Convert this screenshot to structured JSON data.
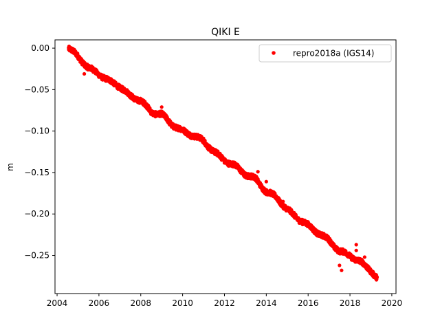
{
  "chart_data": {
    "type": "scatter",
    "title": "QIKI E",
    "xlabel": "",
    "ylabel": "m",
    "xlim": [
      2003.9,
      2020.2
    ],
    "ylim": [
      -0.296,
      0.01
    ],
    "x_ticks": [
      2004,
      2006,
      2008,
      2010,
      2012,
      2014,
      2016,
      2018,
      2020
    ],
    "y_ticks": [
      0.0,
      -0.05,
      -0.1,
      -0.15,
      -0.2,
      -0.25
    ],
    "y_tick_labels": [
      "0.00",
      "−0.05",
      "−0.10",
      "−0.15",
      "−0.20",
      "−0.25"
    ],
    "grid": false,
    "legend_position": "top-right",
    "series": [
      {
        "name": "repro2018a (IGS14)",
        "color": "#ff0000",
        "marker": "circle",
        "trend": [
          [
            2004.55,
            0.0
          ],
          [
            2005.0,
            -0.01
          ],
          [
            2005.5,
            -0.024
          ],
          [
            2006.0,
            -0.031
          ],
          [
            2006.5,
            -0.04
          ],
          [
            2007.0,
            -0.046
          ],
          [
            2007.5,
            -0.058
          ],
          [
            2008.0,
            -0.063
          ],
          [
            2008.5,
            -0.077
          ],
          [
            2009.0,
            -0.08
          ],
          [
            2009.5,
            -0.092
          ],
          [
            2010.0,
            -0.1
          ],
          [
            2010.5,
            -0.105
          ],
          [
            2011.0,
            -0.112
          ],
          [
            2011.5,
            -0.125
          ],
          [
            2012.0,
            -0.135
          ],
          [
            2012.5,
            -0.142
          ],
          [
            2013.0,
            -0.152
          ],
          [
            2013.5,
            -0.158
          ],
          [
            2014.0,
            -0.173
          ],
          [
            2014.5,
            -0.18
          ],
          [
            2015.0,
            -0.195
          ],
          [
            2015.5,
            -0.205
          ],
          [
            2016.0,
            -0.214
          ],
          [
            2016.5,
            -0.223
          ],
          [
            2017.0,
            -0.232
          ],
          [
            2017.5,
            -0.245
          ],
          [
            2018.0,
            -0.25
          ],
          [
            2018.5,
            -0.258
          ],
          [
            2019.0,
            -0.268
          ],
          [
            2019.3,
            -0.278
          ]
        ],
        "outliers": [
          [
            2010.8,
            -0.106
          ],
          [
            2013.6,
            -0.149
          ],
          [
            2014.0,
            -0.161
          ],
          [
            2014.8,
            -0.185
          ],
          [
            2018.3,
            -0.237
          ],
          [
            2018.3,
            -0.244
          ],
          [
            2017.5,
            -0.262
          ],
          [
            2017.6,
            -0.268
          ],
          [
            2018.7,
            -0.252
          ],
          [
            2005.3,
            -0.031
          ],
          [
            2009.0,
            -0.071
          ]
        ]
      }
    ]
  }
}
